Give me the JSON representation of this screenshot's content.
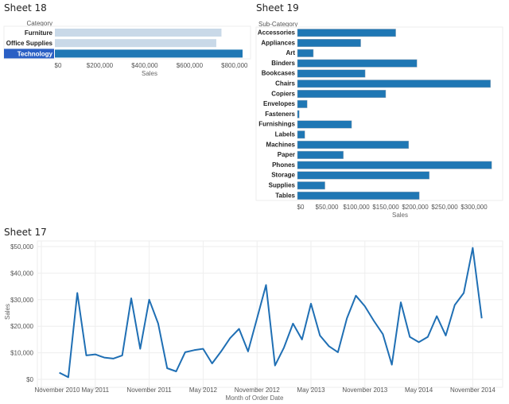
{
  "colors": {
    "bar": "#1f77b4",
    "bar_light": "#c9d9e8",
    "highlight": "#2a5fc4",
    "line": "#1f6fb4",
    "grid": "#eeeeee"
  },
  "chart_data": [
    {
      "sheet": "Sheet 18",
      "type": "bar",
      "orientation": "horizontal",
      "dimension_label": "Category",
      "xlabel": "Sales",
      "categories": [
        "Furniture",
        "Office Supplies",
        "Technology"
      ],
      "values": [
        742000,
        719000,
        836000
      ],
      "selected": "Technology",
      "xlim": [
        0,
        850000
      ],
      "ticks": [
        0,
        200000,
        400000,
        600000,
        800000
      ],
      "tick_labels": [
        "$0",
        "$200,000",
        "$400,000",
        "$600,000",
        "$800,000"
      ]
    },
    {
      "sheet": "Sheet 19",
      "type": "bar",
      "orientation": "horizontal",
      "dimension_label": "Sub-Category",
      "xlabel": "Sales",
      "categories": [
        "Accessories",
        "Appliances",
        "Art",
        "Binders",
        "Bookcases",
        "Chairs",
        "Copiers",
        "Envelopes",
        "Fasteners",
        "Furnishings",
        "Labels",
        "Machines",
        "Paper",
        "Phones",
        "Storage",
        "Supplies",
        "Tables"
      ],
      "values": [
        167000,
        107500,
        27000,
        203000,
        115000,
        328000,
        150000,
        16500,
        3000,
        92000,
        12500,
        189000,
        78000,
        330000,
        224000,
        46700,
        207000
      ],
      "xlim": [
        0,
        342000
      ],
      "ticks": [
        0,
        50000,
        100000,
        150000,
        200000,
        250000,
        300000
      ],
      "tick_labels": [
        "$0",
        "$50,000",
        "$100,000",
        "$150,000",
        "$200,000",
        "$250,000",
        "$300,000"
      ]
    },
    {
      "sheet": "Sheet 17",
      "type": "line",
      "xlabel": "Month of Order Date",
      "ylabel": "Sales",
      "grid": true,
      "x_start": "2011-01",
      "x_end": "2014-12",
      "values": [
        2500,
        800,
        32500,
        9000,
        9400,
        8200,
        7800,
        9000,
        30500,
        11500,
        30000,
        21000,
        4200,
        3000,
        10200,
        11000,
        11500,
        6000,
        10500,
        15500,
        19000,
        10500,
        23000,
        35500,
        5200,
        12000,
        21000,
        15000,
        28500,
        16500,
        12500,
        10200,
        23000,
        31500,
        27500,
        22000,
        17000,
        5500,
        29000,
        16000,
        14000,
        16000,
        23800,
        16500,
        28000,
        32500,
        49500,
        23000
      ],
      "ylim": [
        0,
        52000
      ],
      "yticks": [
        0,
        10000,
        20000,
        30000,
        40000,
        50000
      ],
      "ytick_labels": [
        "$0",
        "$10,000",
        "$20,000",
        "$30,000",
        "$40,000",
        "$50,000"
      ],
      "xticks": [
        "2010-11",
        "2011-05",
        "2011-11",
        "2012-05",
        "2012-11",
        "2013-05",
        "2013-11",
        "2014-05",
        "2014-11"
      ],
      "xtick_labels": [
        "November 2010",
        "May 2011",
        "November 2011",
        "May 2012",
        "November 2012",
        "May 2013",
        "November 2013",
        "May 2014",
        "November 2014"
      ]
    }
  ]
}
